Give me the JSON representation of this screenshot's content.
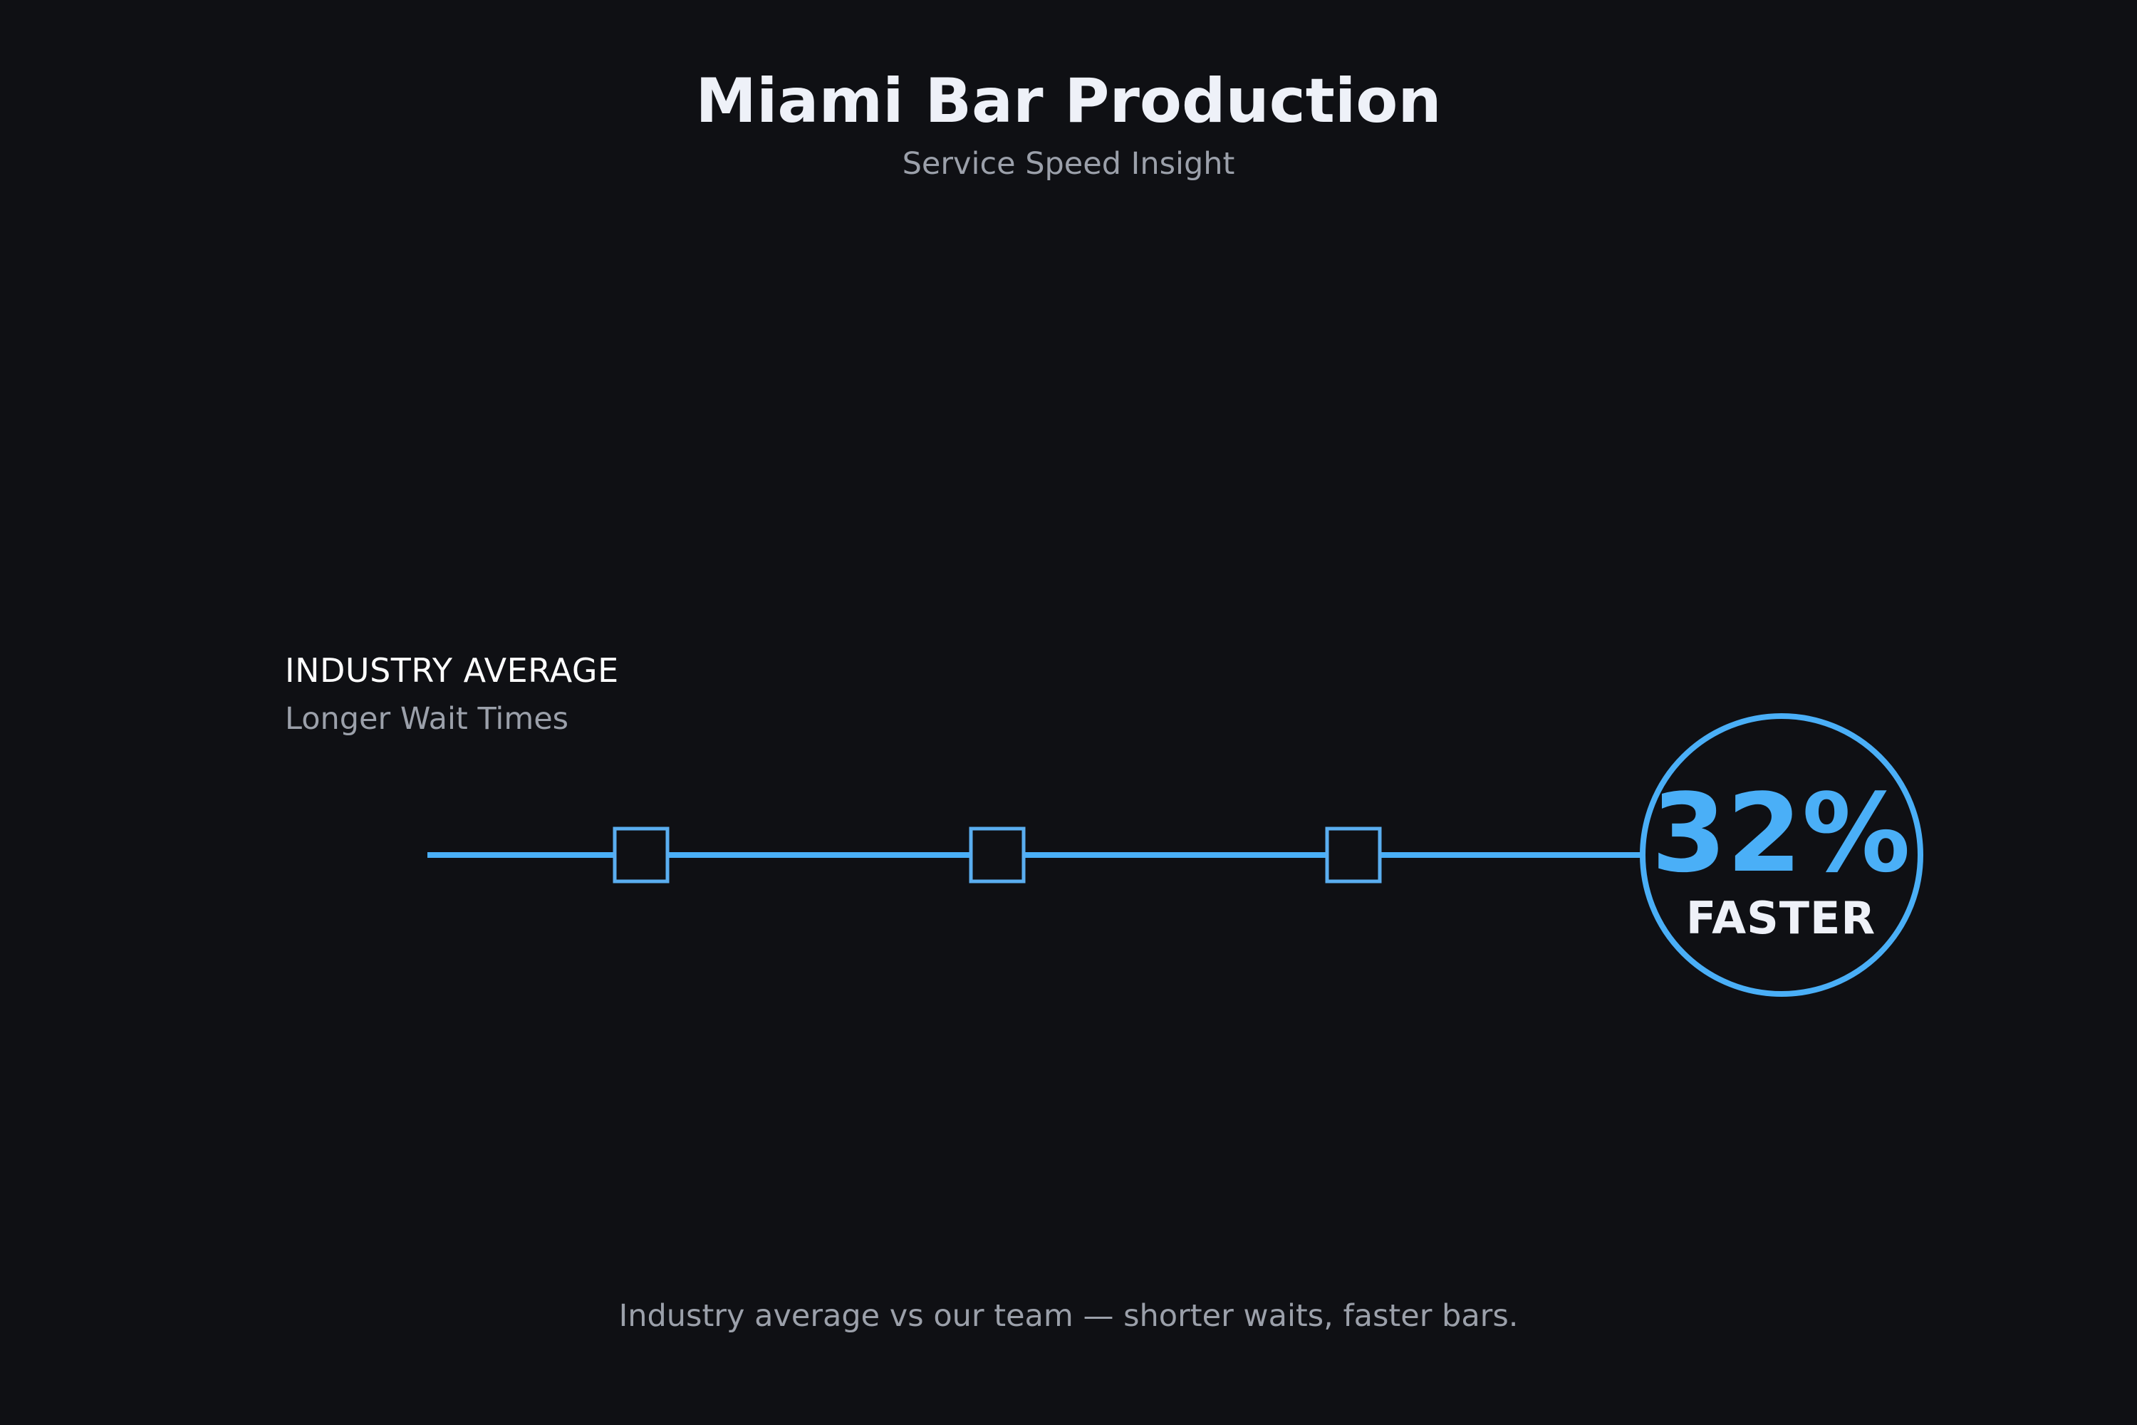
{
  "header": {
    "title": "Miami Bar Production",
    "subtitle": "Service Speed Insight"
  },
  "comparison": {
    "label": "INDUSTRY AVERAGE",
    "sublabel": "Longer Wait Times",
    "markers": [
      "square-marker",
      "square-marker",
      "square-marker"
    ]
  },
  "badge": {
    "value": "32%",
    "label": "FASTER"
  },
  "footer": {
    "caption": "Industry average vs our team — shorter waits, faster bars."
  },
  "colors": {
    "background": "#0f1014",
    "accent": "#4aaff7",
    "marker": "#5aaef0",
    "text_primary": "#eef1f8",
    "text_muted": "#9ba0aa"
  }
}
